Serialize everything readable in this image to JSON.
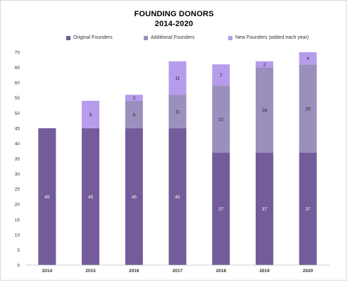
{
  "chart_data": {
    "type": "bar",
    "stacked": true,
    "title": "FOUNDING DONORS",
    "subtitle": "2014-2020",
    "categories": [
      "2014",
      "2015",
      "2016",
      "2017",
      "2018",
      "2019",
      "2020"
    ],
    "series": [
      {
        "name": "Original Founders",
        "color": "#735c99",
        "values": [
          45,
          45,
          45,
          45,
          37,
          37,
          37
        ]
      },
      {
        "name": "Additional Founders",
        "color": "#9a8fbd",
        "values": [
          0,
          0,
          9,
          11,
          22,
          28,
          29
        ]
      },
      {
        "name": "New Founders (added each year)",
        "color": "#b79cec",
        "values": [
          0,
          9,
          2,
          11,
          7,
          2,
          4
        ]
      }
    ],
    "data_labels": [
      [
        "45",
        "45",
        "45",
        "45",
        "37",
        "37",
        "37"
      ],
      [
        "",
        "",
        "9",
        "11",
        "22",
        "28",
        "29"
      ],
      [
        "",
        "9",
        "2",
        "11",
        "7",
        "2",
        "4"
      ]
    ],
    "ylim": [
      0,
      70
    ],
    "yticks": [
      0,
      5,
      10,
      15,
      20,
      25,
      30,
      35,
      40,
      45,
      50,
      55,
      60,
      65,
      70
    ],
    "legend_position": "top",
    "grid": false
  }
}
